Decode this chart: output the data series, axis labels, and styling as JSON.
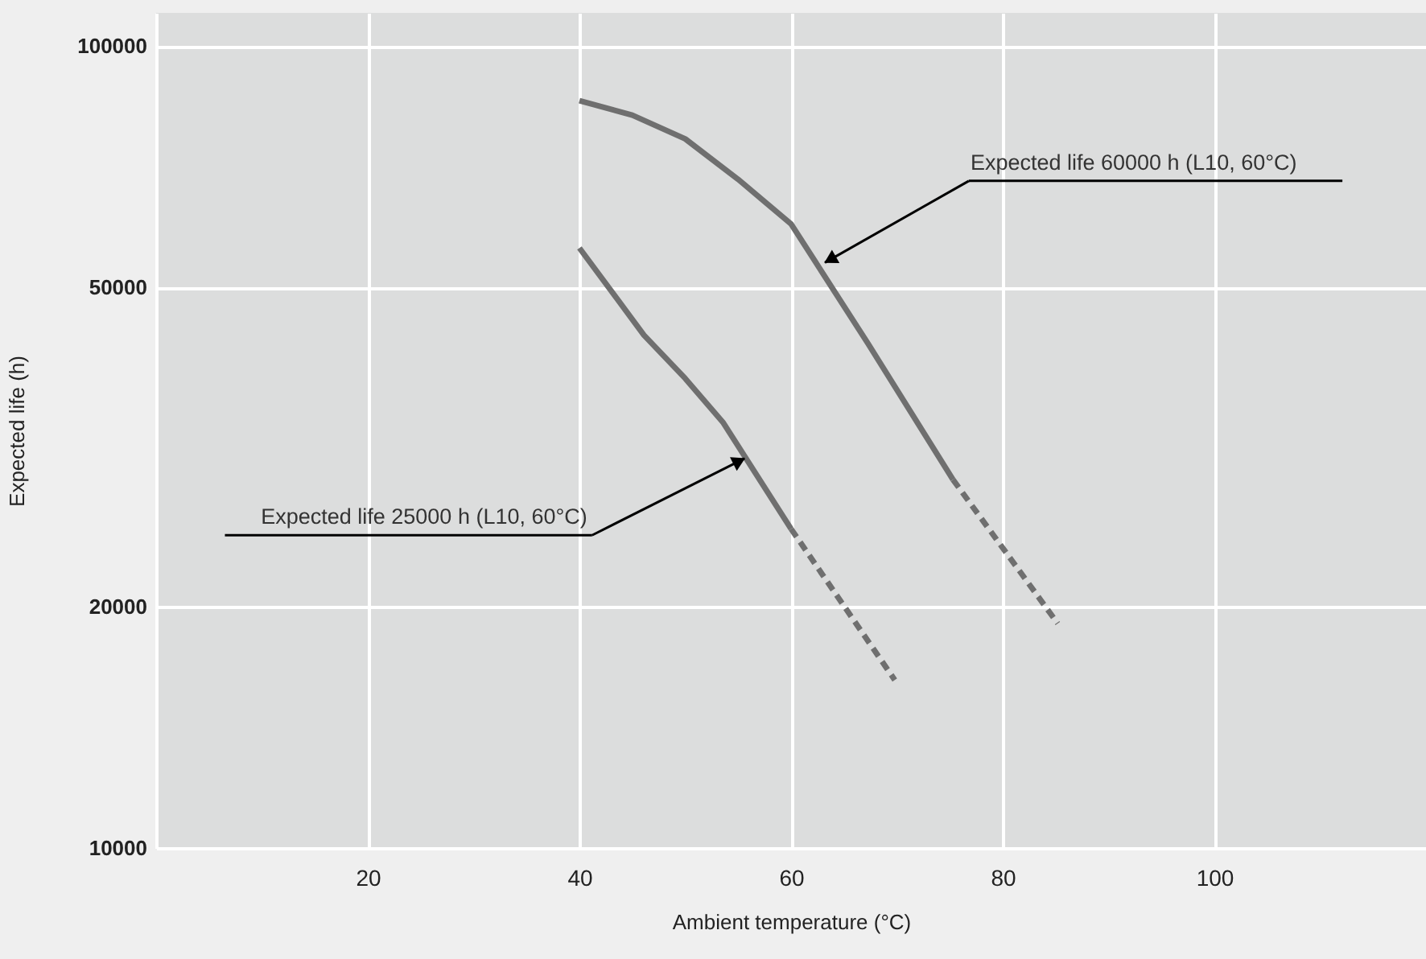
{
  "chart_data": {
    "type": "line",
    "xlabel": "Ambient temperature (°C)",
    "ylabel": "Expected life (h)",
    "xlim": [
      0,
      120
    ],
    "ylim": [
      10000,
      110000
    ],
    "xticks": [
      20,
      40,
      60,
      80,
      100
    ],
    "yticks": [
      10000,
      20000,
      50000,
      100000
    ],
    "log": "y",
    "grid": true,
    "series": [
      {
        "color": "#6f6f6f",
        "line_style": "solid",
        "x": [
          40,
          45,
          50,
          55,
          60,
          67.3,
          75.3
        ],
        "values": [
          85500,
          82000,
          76600,
          68200,
          60000,
          42500,
          28800
        ]
      },
      {
        "color": "#6f6f6f",
        "line_style": "dashed",
        "x": [
          75.3,
          85.2
        ],
        "values": [
          28800,
          19050
        ]
      },
      {
        "color": "#6f6f6f",
        "line_style": "solid",
        "x": [
          40,
          46.1,
          50,
          53.6,
          60
        ],
        "values": [
          56000,
          43600,
          38500,
          33900,
          25000
        ]
      },
      {
        "color": "#6f6f6f",
        "line_style": "dashed",
        "x": [
          60,
          69.8
        ],
        "values": [
          25000,
          16200
        ]
      }
    ],
    "annotations": [
      {
        "text": "Expected life 60000 h (L10, 60°C)",
        "x": 63.2,
        "y": 53700
      },
      {
        "text": "Expected life 25000 h (L10, 60°C)",
        "x": 55.6,
        "y": 30600
      }
    ]
  }
}
